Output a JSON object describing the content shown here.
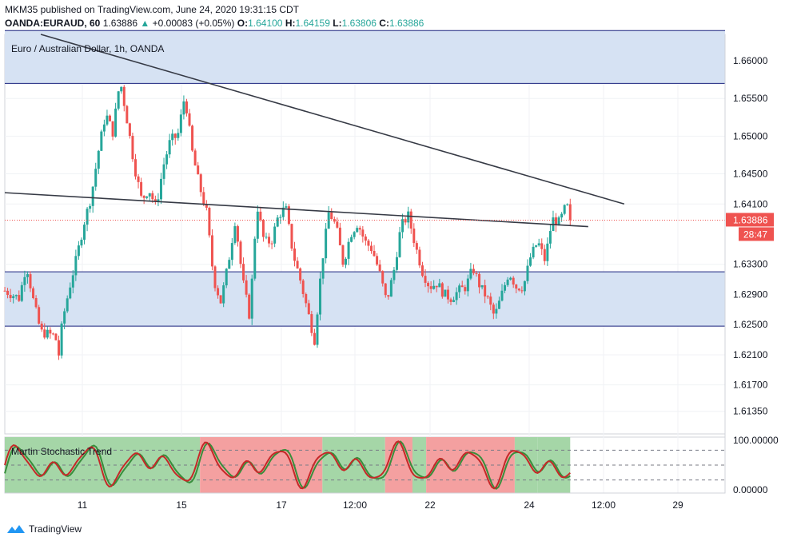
{
  "header": {
    "publish_line": "MKM35 published on TradingView.com, June 24, 2020 19:31:15 CDT",
    "symbol": "OANDA:EURAUD, 60",
    "last": "1.63886",
    "change": "+0.00083 (+0.05%)",
    "o_label": "O:",
    "o": "1.64100",
    "h_label": "H:",
    "h": "1.64159",
    "l_label": "L:",
    "l": "1.63806",
    "c_label": "C:",
    "c": "1.63886"
  },
  "colors": {
    "up": "#26a69a",
    "down": "#ef5350",
    "zone": "#d6e2f3",
    "stoch_green": "#a5d6a7",
    "stoch_red": "#f4a0a0",
    "price_tag": "#ef5350"
  },
  "chart_data": [
    {
      "type": "candlestick",
      "title": "Euro / Australian Dollar, 1h, OANDA",
      "ylim": [
        1.6105,
        1.6635
      ],
      "y_ticks": [
        "1.66000",
        "1.65500",
        "1.65000",
        "1.64500",
        "1.64100",
        "1.63300",
        "1.62900",
        "1.62500",
        "1.62100",
        "1.61700",
        "1.61350"
      ],
      "x_ticks": [
        "11",
        "15",
        "17",
        "12:00",
        "22",
        "24",
        "12:00",
        "29"
      ],
      "last_price_label": "1.63886",
      "countdown_label": "28:47",
      "zones": [
        {
          "from": 1.657,
          "to": 1.664
        },
        {
          "from": 1.6248,
          "to": 1.632
        }
      ],
      "trendlines": [
        {
          "from": [
            0.0,
            1.6425
          ],
          "to": [
            0.81,
            1.638
          ]
        },
        {
          "from": [
            0.05,
            1.6635
          ],
          "to": [
            0.86,
            1.641
          ]
        }
      ],
      "close_path": [
        [
          0.0,
          1.6295
        ],
        [
          0.02,
          1.6285
        ],
        [
          0.03,
          1.633
        ],
        [
          0.04,
          1.628
        ],
        [
          0.05,
          1.624
        ],
        [
          0.07,
          1.6235
        ],
        [
          0.075,
          1.621
        ],
        [
          0.08,
          1.6255
        ],
        [
          0.09,
          1.63
        ],
        [
          0.1,
          1.634
        ],
        [
          0.11,
          1.6385
        ],
        [
          0.12,
          1.642
        ],
        [
          0.13,
          1.648
        ],
        [
          0.14,
          1.653
        ],
        [
          0.15,
          1.6505
        ],
        [
          0.16,
          1.6575
        ],
        [
          0.17,
          1.652
        ],
        [
          0.18,
          1.646
        ],
        [
          0.19,
          1.6415
        ],
        [
          0.2,
          1.643
        ],
        [
          0.21,
          1.6405
        ],
        [
          0.22,
          1.646
        ],
        [
          0.23,
          1.6495
        ],
        [
          0.24,
          1.65
        ],
        [
          0.25,
          1.6555
        ],
        [
          0.26,
          1.648
        ],
        [
          0.27,
          1.6435
        ],
        [
          0.28,
          1.64
        ],
        [
          0.29,
          1.631
        ],
        [
          0.3,
          1.628
        ],
        [
          0.31,
          1.633
        ],
        [
          0.32,
          1.639
        ],
        [
          0.33,
          1.631
        ],
        [
          0.34,
          1.626
        ],
        [
          0.35,
          1.641
        ],
        [
          0.36,
          1.636
        ],
        [
          0.37,
          1.636
        ],
        [
          0.38,
          1.6395
        ],
        [
          0.39,
          1.6405
        ],
        [
          0.4,
          1.6345
        ],
        [
          0.41,
          1.631
        ],
        [
          0.42,
          1.627
        ],
        [
          0.43,
          1.623
        ],
        [
          0.44,
          1.633
        ],
        [
          0.45,
          1.64
        ],
        [
          0.46,
          1.638
        ],
        [
          0.47,
          1.633
        ],
        [
          0.48,
          1.637
        ],
        [
          0.49,
          1.6385
        ],
        [
          0.5,
          1.636
        ],
        [
          0.51,
          1.635
        ],
        [
          0.52,
          1.632
        ],
        [
          0.53,
          1.628
        ],
        [
          0.54,
          1.632
        ],
        [
          0.55,
          1.638
        ],
        [
          0.56,
          1.6395
        ],
        [
          0.57,
          1.6355
        ],
        [
          0.58,
          1.632
        ],
        [
          0.59,
          1.63
        ],
        [
          0.6,
          1.6305
        ],
        [
          0.61,
          1.629
        ],
        [
          0.62,
          1.6285
        ],
        [
          0.63,
          1.6295
        ],
        [
          0.64,
          1.63
        ],
        [
          0.65,
          1.6325
        ],
        [
          0.66,
          1.63
        ],
        [
          0.67,
          1.6285
        ],
        [
          0.68,
          1.626
        ],
        [
          0.69,
          1.629
        ],
        [
          0.7,
          1.632
        ],
        [
          0.71,
          1.63
        ],
        [
          0.72,
          1.63
        ],
        [
          0.73,
          1.634
        ],
        [
          0.74,
          1.636
        ],
        [
          0.75,
          1.6335
        ],
        [
          0.76,
          1.639
        ],
        [
          0.77,
          1.6385
        ],
        [
          0.78,
          1.641
        ],
        [
          0.785,
          1.63886
        ]
      ]
    },
    {
      "type": "line",
      "title": "Martin Stochastic Trend",
      "ylim": [
        0,
        100
      ],
      "y_ticks": [
        "100.00000",
        "0.00000"
      ],
      "levels": [
        80,
        50,
        20
      ],
      "bands": [
        {
          "from": 0.0,
          "to": 0.271,
          "state": "green"
        },
        {
          "from": 0.271,
          "to": 0.441,
          "state": "red"
        },
        {
          "from": 0.441,
          "to": 0.528,
          "state": "green"
        },
        {
          "from": 0.528,
          "to": 0.566,
          "state": "red"
        },
        {
          "from": 0.566,
          "to": 0.585,
          "state": "green"
        },
        {
          "from": 0.585,
          "to": 0.708,
          "state": "red"
        },
        {
          "from": 0.708,
          "to": 0.74,
          "state": "green"
        },
        {
          "from": 0.74,
          "to": 0.785,
          "state": "green"
        }
      ]
    }
  ]
}
